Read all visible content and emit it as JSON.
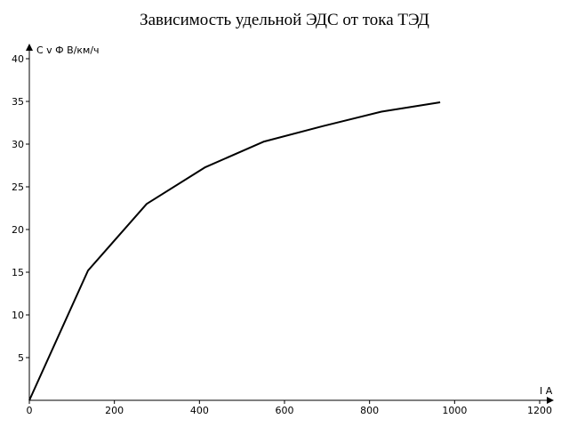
{
  "chart_data": {
    "type": "line",
    "title": "Зависимость удельной ЭДС от тока ТЭД",
    "xlabel": "I A",
    "ylabel": "C v Ф В/км/ч",
    "xlim": [
      0,
      1200
    ],
    "ylim": [
      0,
      40
    ],
    "xticks": [
      0,
      200,
      400,
      600,
      800,
      1000,
      1200
    ],
    "yticks": [
      5,
      10,
      15,
      20,
      25,
      30,
      35,
      40
    ],
    "grid": false,
    "series": [
      {
        "x": [
          0,
          138,
          276,
          414,
          552,
          690,
          828,
          966
        ],
        "y": [
          0,
          15.2,
          23.0,
          27.3,
          30.3,
          32.1,
          33.8,
          34.9
        ]
      }
    ]
  }
}
